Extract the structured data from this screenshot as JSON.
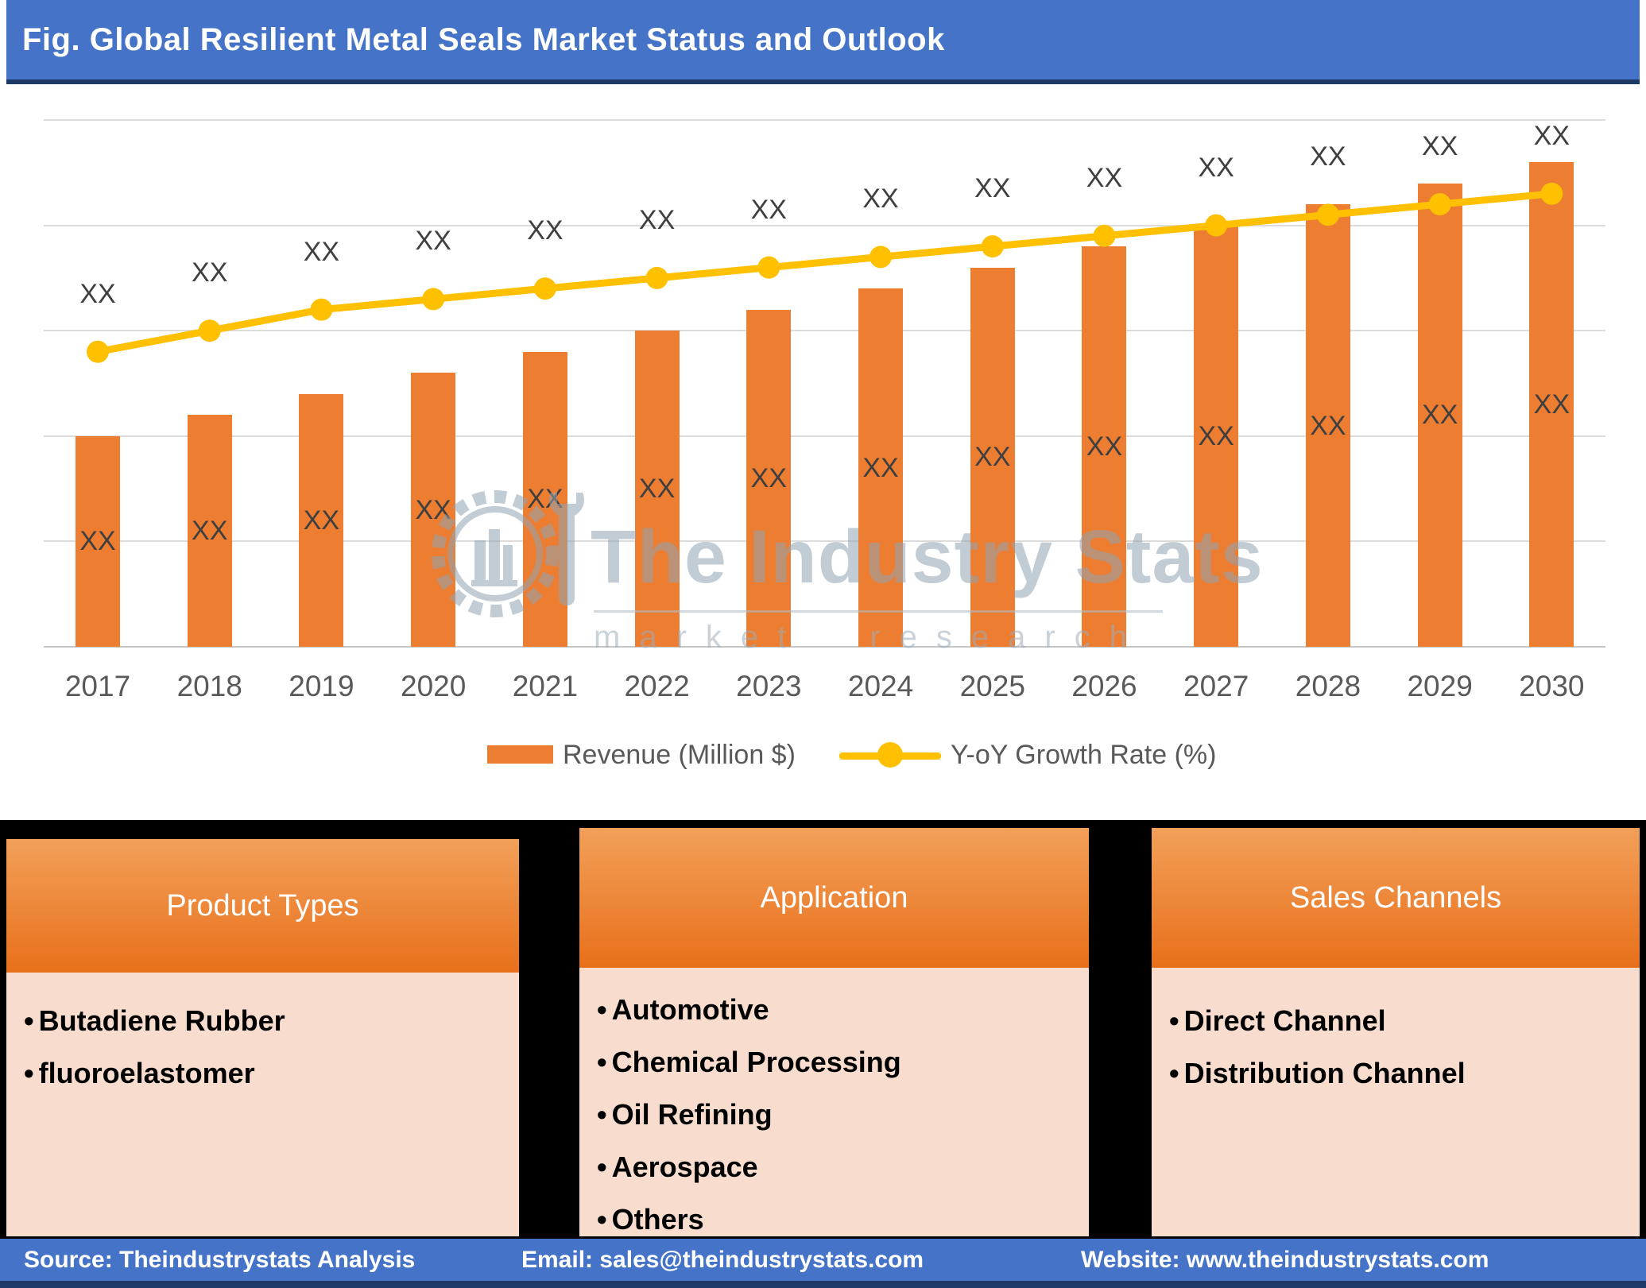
{
  "title": "Fig. Global Resilient Metal Seals Market Status and Outlook",
  "chart_data": {
    "type": "combo",
    "categories": [
      "2017",
      "2018",
      "2019",
      "2020",
      "2021",
      "2022",
      "2023",
      "2024",
      "2025",
      "2026",
      "2027",
      "2028",
      "2029",
      "2030"
    ],
    "series": [
      {
        "name": "Revenue (Million $)",
        "type": "bar",
        "color": "#ED7D31",
        "values": [
          40,
          44,
          48,
          52,
          56,
          60,
          64,
          68,
          72,
          76,
          80,
          84,
          88,
          92
        ],
        "data_labels": [
          "XX",
          "XX",
          "XX",
          "XX",
          "XX",
          "XX",
          "XX",
          "XX",
          "XX",
          "XX",
          "XX",
          "XX",
          "XX",
          "XX"
        ]
      },
      {
        "name": "Y-oY Growth Rate (%)",
        "type": "line",
        "color": "#FFC000",
        "values": [
          56,
          60,
          64,
          66,
          68,
          70,
          72,
          74,
          76,
          78,
          80,
          82,
          84,
          86
        ],
        "data_labels": [
          "XX",
          "XX",
          "XX",
          "XX",
          "XX",
          "XX",
          "XX",
          "XX",
          "XX",
          "XX",
          "XX",
          "XX",
          "XX",
          "XX"
        ]
      }
    ],
    "ylim": [
      0,
      105
    ],
    "gridline_values": [
      0,
      20,
      40,
      60,
      80,
      100
    ],
    "y_axis_labels_visible": false,
    "grid": true,
    "legend_position": "bottom"
  },
  "watermark": {
    "brand": "The Industry Stats",
    "tagline": "market research"
  },
  "panels": [
    {
      "title": "Product Types",
      "items": [
        "Butadiene Rubber",
        "fluoroelastomer"
      ]
    },
    {
      "title": "Application",
      "items": [
        "Automotive",
        "Chemical Processing",
        "Oil Refining",
        "Aerospace",
        "Others"
      ]
    },
    {
      "title": "Sales Channels",
      "items": [
        "Direct Channel",
        "Distribution Channel"
      ]
    }
  ],
  "footer": {
    "source": "Source: Theindustrystats Analysis",
    "email": "Email: sales@theindustrystats.com",
    "website": "Website: www.theindustrystats.com"
  },
  "colors": {
    "accent_blue": "#4573C7",
    "navy": "#1E3A66",
    "bar_orange": "#ED7D31",
    "line_gold": "#FFC000",
    "panel_header_top": "#F2A05A",
    "panel_header_bottom": "#E8701A",
    "panel_body_pink": "#F8DCCD",
    "label_gray": "#3F3F3F",
    "axis_gray": "#595959",
    "watermark_gray": "#90A4B2"
  }
}
